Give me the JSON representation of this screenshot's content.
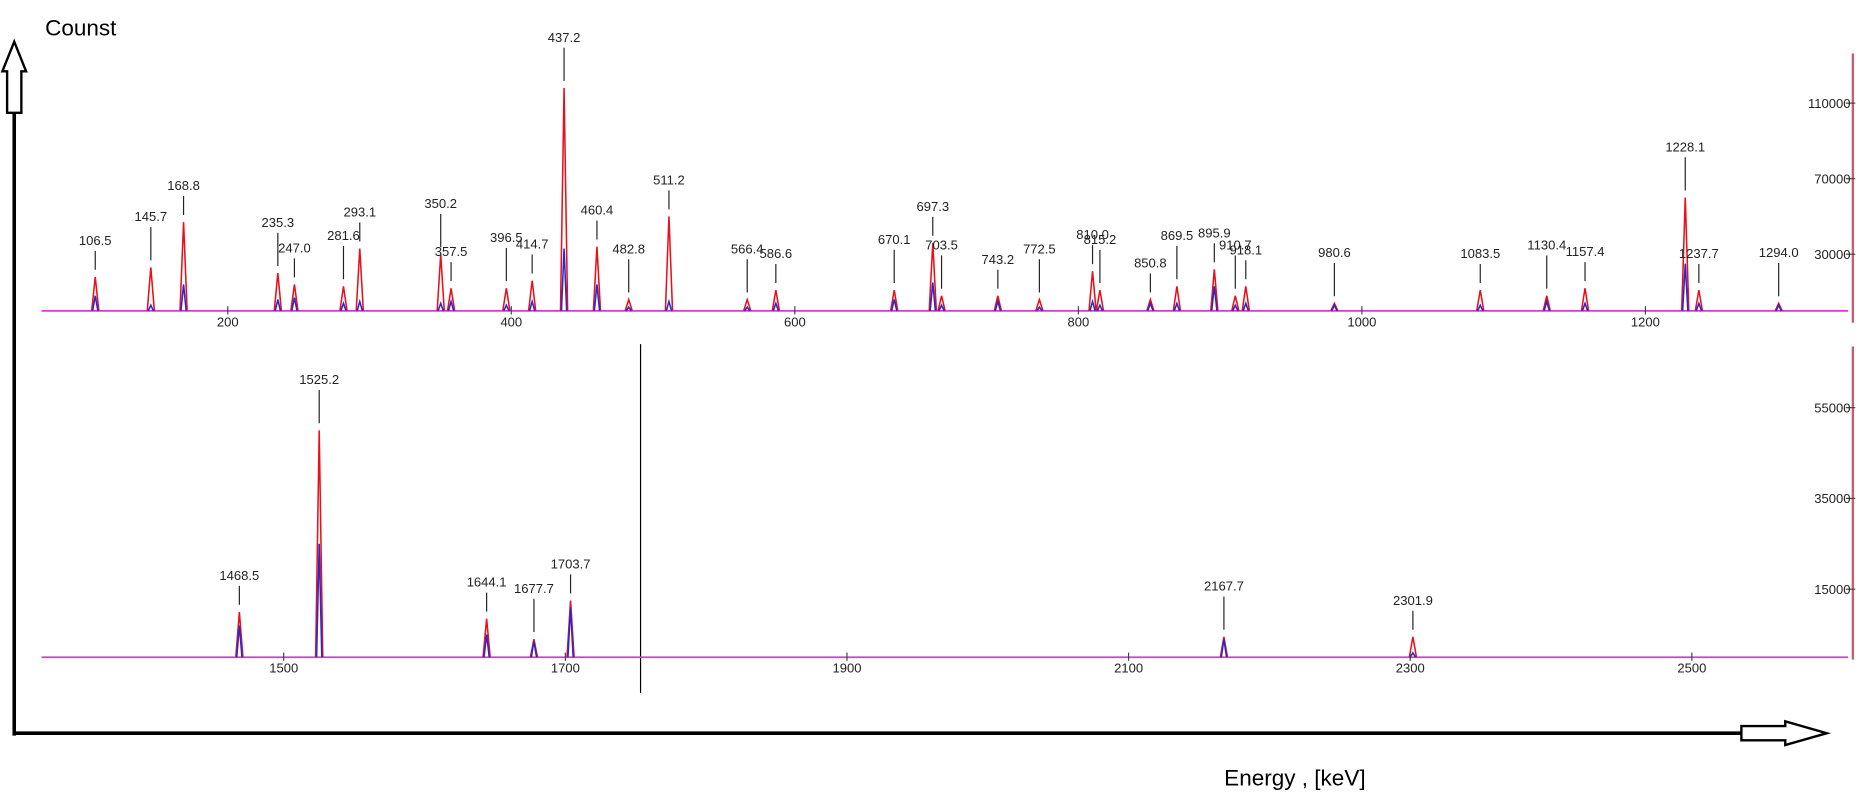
{
  "chart_data": [
    {
      "type": "spectrum",
      "ylabel": "Counst",
      "xlim": [
        68.6,
        1343
      ],
      "xticks": [
        200,
        400,
        600,
        800,
        1000,
        1200
      ],
      "ylim": [
        0,
        130000
      ],
      "yticks": [
        30000,
        70000,
        110000
      ],
      "x": [
        106.5,
        145.7,
        168.8,
        235.3,
        247.0,
        281.6,
        293.1,
        350.2,
        357.5,
        396.5,
        414.7,
        437.2,
        460.4,
        482.8,
        511.2,
        566.4,
        586.6,
        670.1,
        697.3,
        703.5,
        743.2,
        772.5,
        810.0,
        815.2,
        850.8,
        869.5,
        895.9,
        910.7,
        918.1,
        980.6,
        1083.5,
        1130.4,
        1157.4,
        1228.1,
        1237.7,
        1294.0
      ],
      "x_labels": [
        "106.5",
        "145.7",
        "168.8",
        "235.3",
        "247.0",
        "281.6",
        "293.1",
        "350.2",
        "357.5",
        "396.5",
        "414.7",
        "437.2",
        "460.4",
        "482.8",
        "511.2",
        "566.4",
        "586.6",
        "670.1",
        "697.3",
        "703.5",
        "743.2",
        "772.5",
        "810.0",
        "815.2",
        "850.8",
        "869.5",
        "895.9",
        "910.7",
        "918.1",
        "980.6",
        "1083.5",
        "1130.4",
        "1157.4",
        "1228.1",
        "1237.7",
        "1294.0"
      ],
      "series": [
        {
          "color": "#e8101a",
          "values": [
            18000,
            23000,
            47000,
            20000,
            14000,
            13000,
            33000,
            30000,
            12000,
            12000,
            16000,
            118000,
            34000,
            6000,
            50000,
            6000,
            11000,
            11000,
            36000,
            8000,
            8000,
            6000,
            21000,
            11000,
            6000,
            13000,
            22000,
            8000,
            13000,
            4000,
            11000,
            8000,
            12000,
            60000,
            11000,
            4000
          ]
        },
        {
          "color": "#2828d0",
          "values": [
            8000,
            3000,
            14000,
            6000,
            7000,
            4000,
            5000,
            4000,
            5000,
            3000,
            5000,
            33000,
            14000,
            2000,
            5000,
            2000,
            4000,
            6000,
            15000,
            3000,
            5000,
            2000,
            5000,
            3000,
            4000,
            4000,
            13000,
            3000,
            4000,
            3000,
            3000,
            5000,
            4000,
            25000,
            4000,
            3000
          ]
        }
      ]
    },
    {
      "type": "spectrum",
      "xlabel": "Energy , [keV]",
      "xlim": [
        1328,
        2611
      ],
      "xticks": [
        1500,
        1700,
        1900,
        2100,
        2300,
        2500
      ],
      "ylim": [
        0,
        69000
      ],
      "yticks": [
        15000,
        35000,
        55000
      ],
      "x": [
        1468.5,
        1525.2,
        1644.1,
        1677.7,
        1703.7,
        2167.7,
        2301.9
      ],
      "x_labels": [
        "1468.5",
        "1525.2",
        "1644.1",
        "1677.7",
        "1703.7",
        "2167.7",
        "2301.9"
      ],
      "series": [
        {
          "color": "#e8101a",
          "values": [
            10000,
            50000,
            8500,
            4000,
            12500,
            4500,
            4500
          ]
        },
        {
          "color": "#2828d0",
          "values": [
            7000,
            25000,
            5000,
            3500,
            11000,
            4000,
            1000
          ]
        }
      ]
    }
  ]
}
